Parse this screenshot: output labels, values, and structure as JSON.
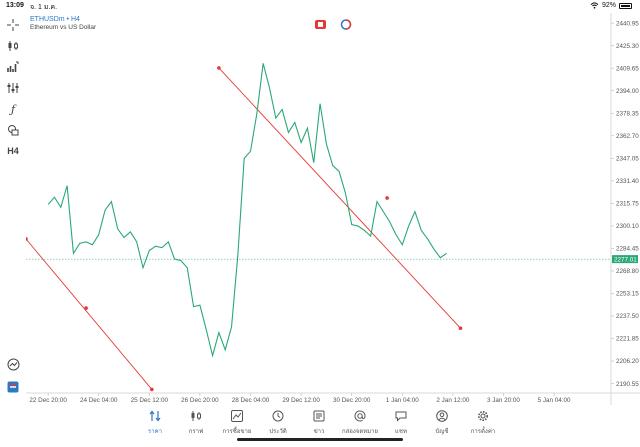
{
  "status_bar": {
    "time": "13:09",
    "date": "จ. 1 ม.ค.",
    "battery": "92%",
    "battery_level": 0.92
  },
  "chart_header": {
    "symbol": "ETHUSDm • H4",
    "description": "Ethereum vs US Dollar"
  },
  "toolbar": [
    {
      "name": "crosshair-icon",
      "glyph": "+"
    },
    {
      "name": "candlestick-type-icon",
      "glyph": "candles"
    },
    {
      "name": "indicators-icon",
      "glyph": "bars"
    },
    {
      "name": "settings-sliders-icon",
      "glyph": "sliders"
    },
    {
      "name": "function-icon",
      "glyph": "ƒ"
    },
    {
      "name": "objects-icon",
      "glyph": "shapes"
    },
    {
      "name": "timeframe-button",
      "label": "H4"
    }
  ],
  "chart_data": {
    "type": "line",
    "title": "ETHUSDm • H4",
    "subtitle": "Ethereum vs US Dollar",
    "color": "#2aa876",
    "x_tick_labels": [
      "22 Dec 20:00",
      "24 Dec 04:00",
      "25 Dec 12:00",
      "26 Dec 20:00",
      "28 Dec 04:00",
      "29 Dec 12:00",
      "30 Dec 20:00",
      "1 Jan 04:00",
      "2 Jan 12:00",
      "3 Jan 20:00",
      "5 Jan 04:00"
    ],
    "y_tick_labels": [
      "2440.95",
      "2425.30",
      "2409.65",
      "2394.00",
      "2378.35",
      "2362.70",
      "2347.05",
      "2331.40",
      "2315.75",
      "2300.10",
      "2284.45",
      "2268.80",
      "2253.15",
      "2237.50",
      "2221.85",
      "2206.20",
      "2190.55"
    ],
    "ylim": [
      2184.0,
      2448.0
    ],
    "xlim": [
      -1.75,
      44.5
    ],
    "x_ticks": [
      0,
      4,
      8,
      12,
      16,
      20,
      24,
      28,
      32,
      36,
      40
    ],
    "y_ticks": [
      2440.95,
      2425.3,
      2409.65,
      2394.0,
      2378.35,
      2362.7,
      2347.05,
      2331.4,
      2315.75,
      2300.1,
      2284.45,
      2268.8,
      2253.15,
      2237.5,
      2221.85,
      2206.2,
      2190.55
    ],
    "values": [
      2315,
      2320,
      2313,
      2328,
      2281,
      2288,
      2289,
      2287,
      2294,
      2311,
      2317,
      2298,
      2292,
      2296,
      2289,
      2271,
      2283,
      2286,
      2285,
      2289,
      2277,
      2276,
      2271,
      2244,
      2245,
      2228,
      2210,
      2226,
      2214,
      2230,
      2280,
      2347,
      2352,
      2378,
      2413,
      2396,
      2375,
      2381,
      2365,
      2372,
      2358,
      2368,
      2344,
      2385,
      2357,
      2342,
      2338,
      2323,
      2301,
      2300,
      2297,
      2293,
      2317,
      2310,
      2303,
      2294,
      2287,
      2300,
      2310,
      2297,
      2291,
      2284,
      2278,
      2281
    ],
    "last_price": "2277.01",
    "last_price_value": 2277.01,
    "trendlines": [
      {
        "from": [
          13.5,
          2409.8
        ],
        "to": [
          32.6,
          2229.0
        ],
        "midpoint": [
          26.8,
          2319.5
        ],
        "color": "#e53935"
      },
      {
        "from": [
          -1.75,
          2291.0
        ],
        "to": [
          8.2,
          2186.5
        ],
        "midpoint": [
          3.0,
          2243.0
        ],
        "color": "#e53935"
      }
    ]
  },
  "tab_bar": [
    {
      "label": "ราคา",
      "icon": "quotes-arrows-icon",
      "active": true
    },
    {
      "label": "กราฟ",
      "icon": "chart-candles-icon",
      "active": false
    },
    {
      "label": "การซื้อขาย",
      "icon": "trade-chart-icon",
      "active": false
    },
    {
      "label": "ประวัติ",
      "icon": "history-clock-icon",
      "active": false
    },
    {
      "label": "ข่าว",
      "icon": "news-icon",
      "active": false
    },
    {
      "label": "กล่องจดหมาย",
      "icon": "mailbox-at-icon",
      "active": false
    },
    {
      "label": "แชท",
      "icon": "chat-bubble-icon",
      "active": false
    },
    {
      "label": "บัญชี",
      "icon": "account-icon",
      "active": false
    },
    {
      "label": "การตั้งค่า",
      "icon": "settings-gear-icon",
      "active": false
    }
  ],
  "colors": {
    "accent": "#2979c5",
    "line": "#2aa876",
    "trendline": "#e53935",
    "price_tag": "#2aa876"
  }
}
